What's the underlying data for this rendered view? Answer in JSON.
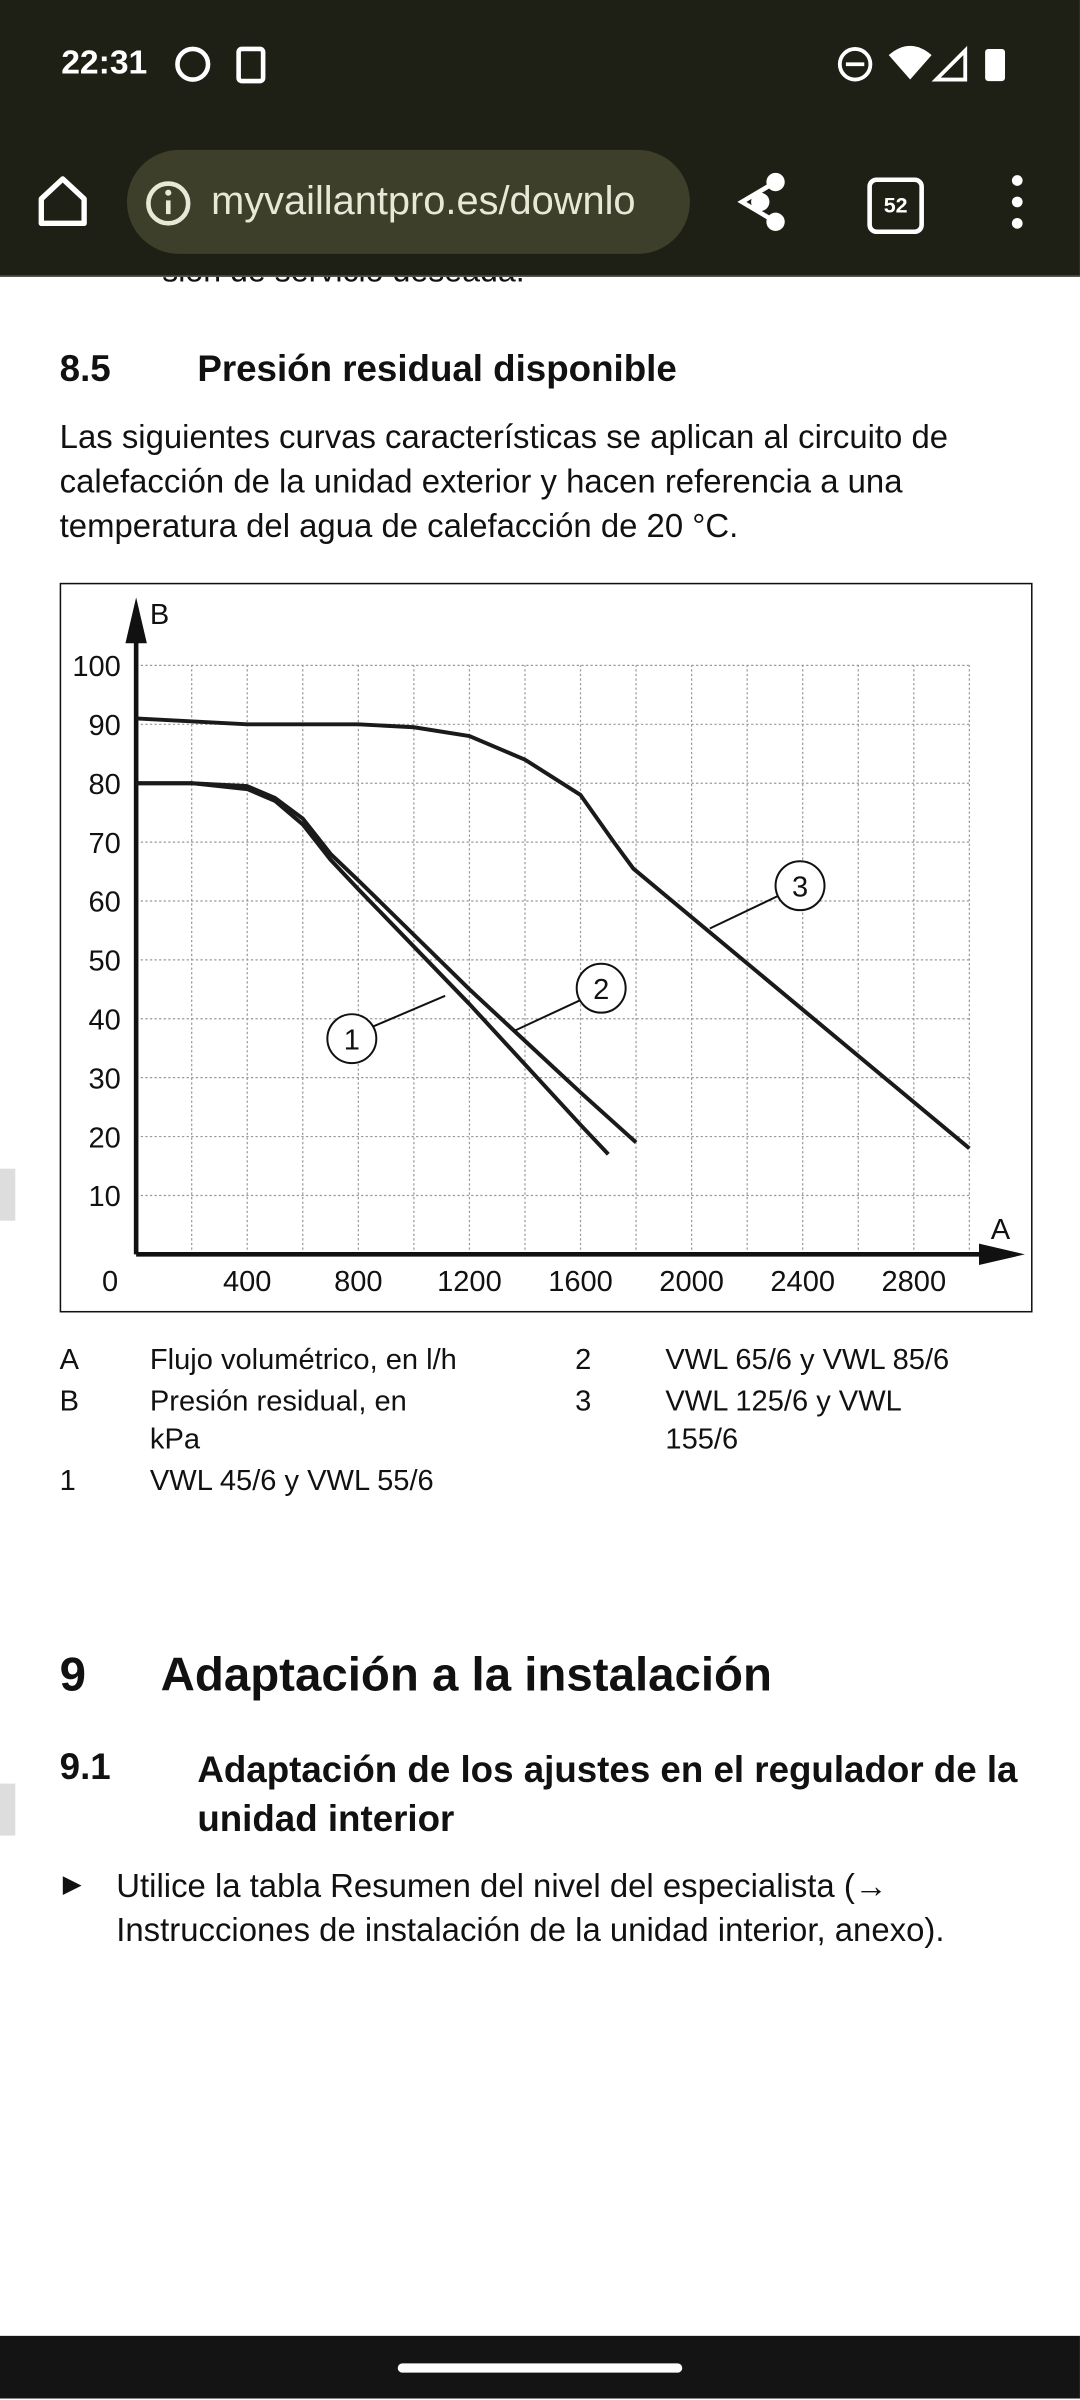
{
  "status_bar": {
    "time": "22:31"
  },
  "browser": {
    "url": "myvaillantpro.es/downlo",
    "tabs": "52"
  },
  "document": {
    "cut_line": "sión de servicio deseada.",
    "section_8_5": {
      "number": "8.5",
      "title": "Presión residual disponible"
    },
    "paragraph": "Las siguientes curvas características se aplican al circuito de calefacción de la unidad exterior y hacen referencia a una temperatura del agua de calefacción de 20 °C.",
    "chart_key": [
      {
        "symbol": "A",
        "text": "Flujo volumétrico, en l/h"
      },
      {
        "symbol": "B",
        "text": "Presión residual, en kPa"
      },
      {
        "symbol": "1",
        "text": "VWL 45/6 y VWL 55/6"
      },
      {
        "symbol": "2",
        "text": "VWL 65/6 y VWL 85/6"
      },
      {
        "symbol": "3",
        "text": "VWL 125/6 y VWL 155/6"
      }
    ],
    "section_9": {
      "number": "9",
      "title": "Adaptación a la instalación"
    },
    "section_9_1": {
      "number": "9.1",
      "title": "Adaptación de los ajustes en el regulador de la unidad interior"
    },
    "bullet": "Utilice la tabla Resumen del nivel del especialista (→ Instrucciones de instalación de la unidad interior, anexo)."
  },
  "chart_data": {
    "type": "line",
    "x_label": "A",
    "y_label": "B",
    "xlim": [
      0,
      3200
    ],
    "ylim": [
      0,
      110
    ],
    "xticks": [
      0,
      400,
      800,
      1200,
      1600,
      2000,
      2400,
      2800
    ],
    "yticks": [
      10,
      20,
      30,
      40,
      50,
      60,
      70,
      80,
      90,
      100
    ],
    "grid": true,
    "series": [
      {
        "name": "1",
        "color": "#1a1a1a",
        "x": [
          0,
          200,
          400,
          500,
          600,
          700,
          800,
          1200,
          1600,
          1700
        ],
        "values": [
          80,
          80,
          79,
          77,
          73,
          67,
          62,
          42.5,
          22,
          17
        ]
      },
      {
        "name": "2",
        "color": "#1a1a1a",
        "x": [
          0,
          200,
          400,
          500,
          600,
          700,
          800,
          1200,
          1600,
          1800
        ],
        "values": [
          80,
          80,
          79.5,
          77.5,
          74,
          68,
          63.5,
          45,
          27.5,
          19
        ]
      },
      {
        "name": "3",
        "color": "#1a1a1a",
        "x": [
          0,
          400,
          800,
          1000,
          1200,
          1400,
          1600,
          1720,
          1790,
          3000
        ],
        "values": [
          91,
          90,
          90,
          89.5,
          88,
          84,
          78,
          70,
          65.5,
          18
        ]
      }
    ]
  }
}
